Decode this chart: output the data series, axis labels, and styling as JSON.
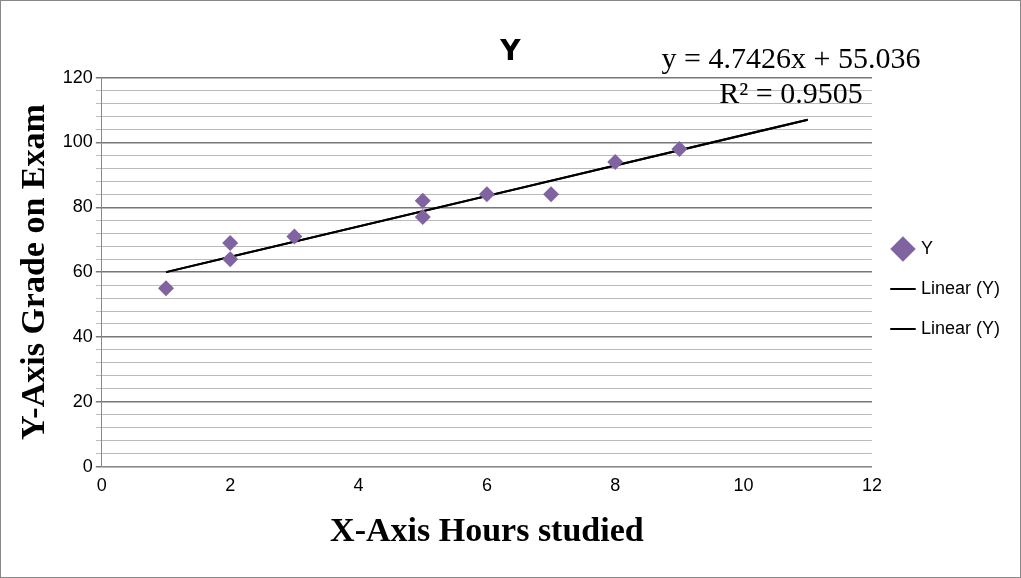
{
  "chart_data": {
    "type": "scatter",
    "title": "Y",
    "xlabel": "X-Axis Hours studied",
    "ylabel": "Y-Axis Grade on Exam",
    "annotations": [
      "y = 4.7426x + 55.036",
      "R² = 0.9505"
    ],
    "series": [
      {
        "name": "Y",
        "color": "#8064a2",
        "marker": "diamond",
        "x": [
          1,
          2,
          2,
          3,
          5,
          5,
          6,
          7,
          8,
          9
        ],
        "values": [
          55,
          69,
          64,
          71,
          82,
          77,
          84,
          84,
          94,
          98
        ]
      },
      {
        "name": "Linear (Y)",
        "type": "line",
        "color": "#000000",
        "marker": "none",
        "x": [
          1,
          11
        ],
        "values": [
          60,
          107
        ]
      },
      {
        "name": "Linear (Y)",
        "type": "line",
        "color": "#000000",
        "marker": "none",
        "x": [
          1,
          11
        ],
        "values": [
          60,
          107
        ]
      }
    ],
    "xlim": [
      0,
      12
    ],
    "xticks": [
      0,
      2,
      4,
      6,
      8,
      10,
      12
    ],
    "ylim": [
      0,
      120
    ],
    "yticks": [
      0,
      {
        "value": 4,
        "label": null
      },
      {
        "value": 8,
        "label": null
      },
      {
        "value": 12,
        "label": null
      },
      {
        "value": 16,
        "label": null
      },
      20,
      {
        "value": 24,
        "label": null
      },
      {
        "value": 28,
        "label": null
      },
      {
        "value": 32,
        "label": null
      },
      {
        "value": 36,
        "label": null
      },
      40,
      {
        "value": 44,
        "label": null
      },
      {
        "value": 48,
        "label": null
      },
      {
        "value": 52,
        "label": null
      },
      {
        "value": 56,
        "label": null
      },
      60,
      {
        "value": 64,
        "label": null
      },
      {
        "value": 68,
        "label": null
      },
      {
        "value": 72,
        "label": null
      },
      {
        "value": 76,
        "label": null
      },
      80,
      {
        "value": 84,
        "label": null
      },
      {
        "value": 88,
        "label": null
      },
      {
        "value": 92,
        "label": null
      },
      {
        "value": 96,
        "label": null
      },
      100,
      {
        "value": 104,
        "label": null
      },
      {
        "value": 108,
        "label": null
      },
      {
        "value": 112,
        "label": null
      },
      {
        "value": 116,
        "label": null
      },
      120
    ],
    "grid": "y",
    "legend": "right"
  }
}
